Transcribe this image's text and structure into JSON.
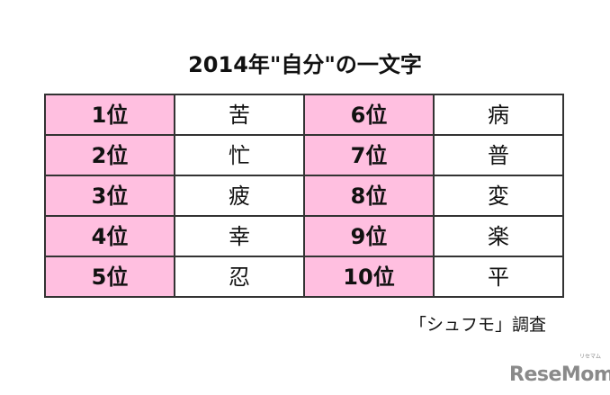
{
  "title": "2014年\"自分\"の一文字",
  "colors": {
    "rank_cell": "#ffbfe0",
    "value_cell": "#ffffff",
    "border": "#333333"
  },
  "rows": [
    {
      "rank_a": "1位",
      "char_a": "苦",
      "rank_b": "6位",
      "char_b": "病"
    },
    {
      "rank_a": "2位",
      "char_a": "忙",
      "rank_b": "7位",
      "char_b": "普"
    },
    {
      "rank_a": "3位",
      "char_a": "疲",
      "rank_b": "8位",
      "char_b": "変"
    },
    {
      "rank_a": "4位",
      "char_a": "幸",
      "rank_b": "9位",
      "char_b": "楽"
    },
    {
      "rank_a": "5位",
      "char_a": "忍",
      "rank_b": "10位",
      "char_b": "平"
    }
  ],
  "source": "「シュフモ」調査",
  "logo": {
    "text": "ReseMom",
    "ruby": "リセマム"
  }
}
